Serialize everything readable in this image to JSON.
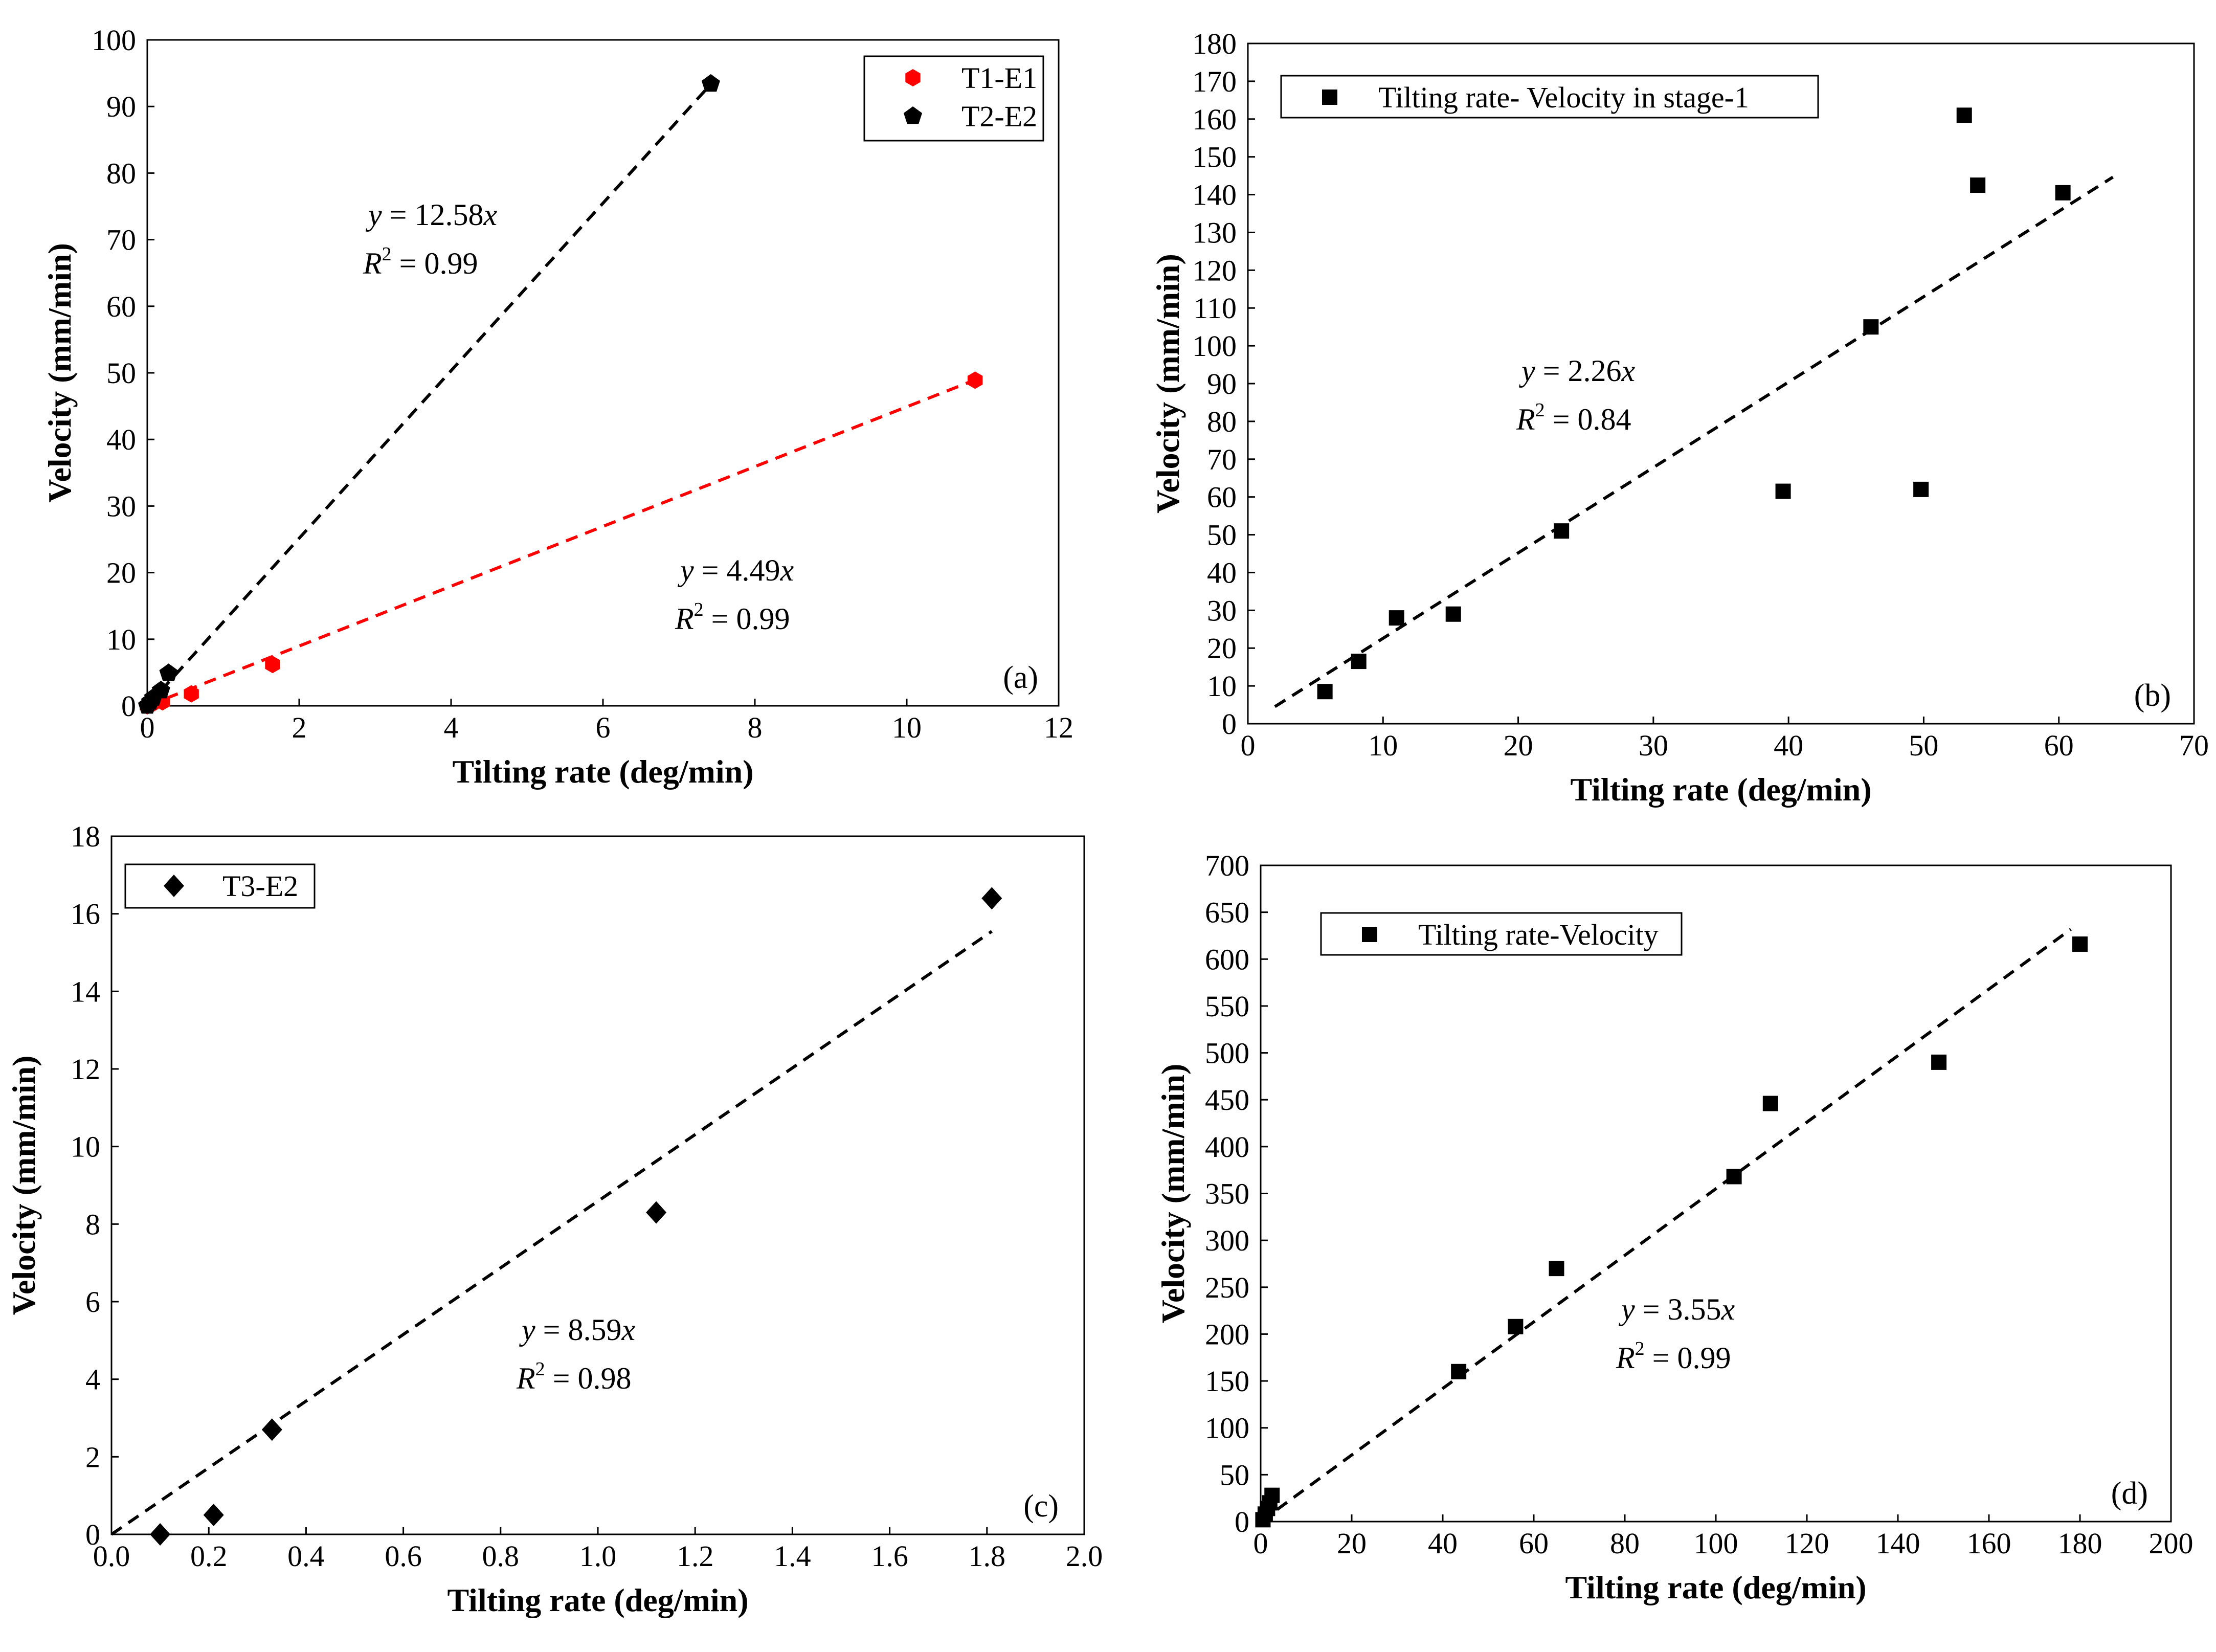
{
  "chart_data": [
    {
      "type": "scatter",
      "panel_label": "(a)",
      "xlabel": "Tilting rate (deg/min)",
      "ylabel": "Velocity (mm/min)",
      "xlim": [
        0,
        12
      ],
      "ylim": [
        0,
        100
      ],
      "x_ticks": [
        "0",
        "2",
        "4",
        "6",
        "8",
        "10",
        "12"
      ],
      "y_ticks": [
        "0",
        "10",
        "20",
        "30",
        "40",
        "50",
        "60",
        "70",
        "80",
        "90",
        "100"
      ],
      "legend_position": "top-right",
      "series": [
        {
          "name": "T1-E1",
          "marker": "hexagon",
          "color": "#ff0000",
          "x": [
            0.0,
            0.05,
            0.2,
            0.58,
            1.65,
            10.9
          ],
          "y": [
            0.0,
            0.2,
            0.6,
            1.8,
            6.2,
            48.9
          ]
        },
        {
          "name": "T2-E2",
          "marker": "pentagon",
          "color": "#000000",
          "x": [
            0.0,
            0.04,
            0.08,
            0.18,
            0.28,
            7.42
          ],
          "y": [
            0.0,
            0.6,
            1.2,
            2.3,
            4.9,
            93.4
          ]
        }
      ],
      "fits": [
        {
          "series": "T2-E2",
          "slope": 12.58,
          "color": "#000000",
          "x_range": [
            0,
            7.42
          ],
          "equation": "y = 12.58x",
          "r2_label": "R",
          "r2_sup": "2",
          "r2_value": " = 0.99"
        },
        {
          "series": "T1-E1",
          "slope": 4.49,
          "color": "#ff0000",
          "x_range": [
            0,
            10.9
          ],
          "equation": "y = 4.49x",
          "r2_label": "R",
          "r2_sup": "2",
          "r2_value": " = 0.99"
        }
      ]
    },
    {
      "type": "scatter",
      "panel_label": "(b)",
      "xlabel": "Tilting rate (deg/min)",
      "ylabel": "Velocity (mm/min)",
      "xlim": [
        0,
        70
      ],
      "ylim": [
        0,
        180
      ],
      "x_ticks": [
        "0",
        "10",
        "20",
        "30",
        "40",
        "50",
        "60",
        "70"
      ],
      "y_ticks": [
        "0",
        "10",
        "20",
        "30",
        "40",
        "50",
        "60",
        "70",
        "80",
        "90",
        "100",
        "110",
        "120",
        "130",
        "140",
        "150",
        "160",
        "170",
        "180"
      ],
      "legend_position": "top-left",
      "series": [
        {
          "name": "Tilting rate- Velocity in stage-1",
          "marker": "square",
          "color": "#000000",
          "x": [
            5.7,
            8.2,
            11.0,
            15.2,
            23.2,
            39.6,
            46.1,
            49.8,
            53.0,
            54.0,
            60.3
          ],
          "y": [
            8.5,
            16.5,
            28.0,
            29.0,
            51.0,
            61.5,
            105.0,
            62.0,
            161.0,
            142.5,
            140.5
          ]
        }
      ],
      "fits": [
        {
          "series": "Tilting rate- Velocity in stage-1",
          "slope": 2.26,
          "color": "#000000",
          "x_range": [
            2,
            64
          ],
          "equation": "y = 2.26x",
          "r2_label": "R",
          "r2_sup": "2",
          "r2_value": " = 0.84"
        }
      ]
    },
    {
      "type": "scatter",
      "panel_label": "(c)",
      "xlabel": "Tilting rate (deg/min)",
      "ylabel": "Velocity (mm/min)",
      "xlim": [
        0,
        2
      ],
      "ylim": [
        0,
        18
      ],
      "x_ticks": [
        "0.0",
        "0.2",
        "0.4",
        "0.6",
        "0.8",
        "1.0",
        "1.2",
        "1.4",
        "1.6",
        "1.8",
        "2.0"
      ],
      "y_ticks": [
        "0",
        "2",
        "4",
        "6",
        "8",
        "10",
        "12",
        "14",
        "16",
        "18"
      ],
      "legend_position": "top-left",
      "series": [
        {
          "name": "T3-E2",
          "marker": "diamond",
          "color": "#000000",
          "x": [
            0.1,
            0.21,
            0.33,
            1.12,
            1.81
          ],
          "y": [
            0.0,
            0.5,
            2.7,
            8.3,
            16.4
          ]
        }
      ],
      "fits": [
        {
          "series": "T3-E2",
          "slope": 8.59,
          "color": "#000000",
          "x_range": [
            0,
            1.81
          ],
          "equation": "y = 8.59x",
          "r2_label": "R",
          "r2_sup": "2",
          "r2_value": " = 0.98"
        }
      ]
    },
    {
      "type": "scatter",
      "panel_label": "(d)",
      "xlabel": "Tilting rate (deg/min)",
      "ylabel": "Velocity (mm/min)",
      "xlim": [
        0,
        200
      ],
      "ylim": [
        0,
        700
      ],
      "x_ticks": [
        "0",
        "20",
        "40",
        "60",
        "80",
        "100",
        "120",
        "140",
        "160",
        "180",
        "200"
      ],
      "y_ticks": [
        "0",
        "50",
        "100",
        "150",
        "200",
        "250",
        "300",
        "350",
        "400",
        "450",
        "500",
        "550",
        "600",
        "650",
        "700"
      ],
      "legend_position": "top-left",
      "series": [
        {
          "name": "Tilting rate-Velocity",
          "marker": "square",
          "color": "#000000",
          "x": [
            0.5,
            1.0,
            1.5,
            2.0,
            2.5,
            43.5,
            56.0,
            65.0,
            104.0,
            112.0,
            149.0,
            180.0
          ],
          "y": [
            2,
            8,
            14,
            20,
            28,
            160,
            208,
            270,
            368,
            446,
            490,
            616
          ]
        }
      ],
      "fits": [
        {
          "series": "Tilting rate-Velocity",
          "slope": 3.55,
          "color": "#000000",
          "x_range": [
            0,
            178
          ],
          "equation": "y = 3.55x",
          "r2_label": "R",
          "r2_sup": "2",
          "r2_value": " = 0.99"
        }
      ]
    }
  ]
}
